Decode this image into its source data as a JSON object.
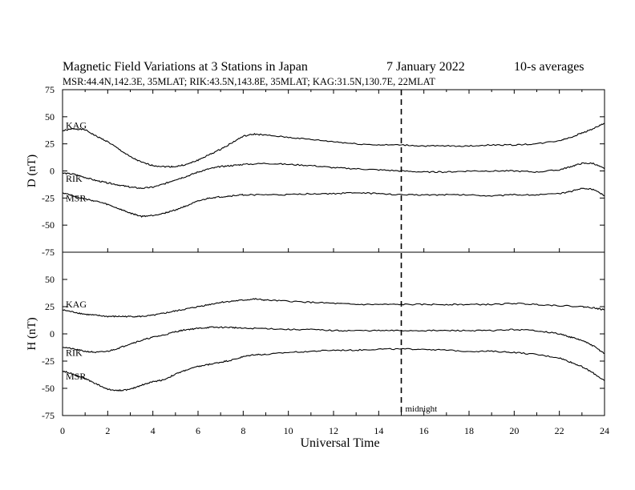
{
  "header": {
    "title": "Magnetic Field Variations at 3 Stations in Japan",
    "date": "7   January  2022",
    "averaging": "10-s averages",
    "stations_line": "MSR:44.4N,142.3E, 35MLAT;  RIK:43.5N,143.8E, 35MLAT;  KAG:31.5N,130.7E, 22MLAT"
  },
  "chart_data": {
    "type": "line",
    "xlabel": "Universal Time",
    "xlim": [
      0,
      24
    ],
    "x_ticks": [
      "0",
      "2",
      "4",
      "6",
      "8",
      "10",
      "12",
      "14",
      "16",
      "18",
      "20",
      "22",
      "24"
    ],
    "midnight_ut": 15,
    "midnight_label": "midnight",
    "panels": [
      {
        "ylabel": "D (nT)",
        "ylim": [
          -75,
          75
        ],
        "y_ticks": [
          "75",
          "50",
          "25",
          "0",
          "-25",
          "-50",
          "-75"
        ],
        "series": [
          {
            "name": "KAG",
            "x": [
              0,
              0.5,
              1,
              1.5,
              2,
              2.5,
              3,
              3.5,
              4,
              4.5,
              5,
              5.5,
              6,
              6.5,
              7,
              7.5,
              8,
              8.5,
              9,
              10,
              11,
              12,
              13,
              14,
              15,
              16,
              17,
              18,
              19,
              20,
              21,
              22,
              22.5,
              23,
              23.5,
              24
            ],
            "y": [
              37,
              39,
              38,
              32,
              27,
              20,
              13,
              8,
              5,
              4,
              4,
              6,
              10,
              15,
              20,
              26,
              32,
              34,
              33,
              31,
              29,
              27,
              25,
              24,
              24,
              23,
              23,
              23,
              24,
              24,
              25,
              28,
              31,
              35,
              39,
              44
            ]
          },
          {
            "name": "RIK",
            "x": [
              0,
              0.5,
              1,
              1.5,
              2,
              2.5,
              3,
              3.5,
              4,
              4.5,
              5,
              5.5,
              6,
              6.5,
              7,
              7.5,
              8,
              9,
              10,
              11,
              12,
              13,
              14,
              15,
              16,
              17,
              18,
              19,
              20,
              21,
              22,
              22.5,
              23,
              23.5,
              24
            ],
            "y": [
              -2,
              -3,
              -6,
              -9,
              -11,
              -13,
              -15,
              -16,
              -15,
              -12,
              -8,
              -5,
              -1,
              2,
              4,
              5,
              6,
              7,
              6,
              5,
              3,
              2,
              1,
              0,
              -1,
              -1,
              0,
              0,
              0,
              -1,
              1,
              4,
              7,
              7,
              2
            ]
          },
          {
            "name": "MSR",
            "x": [
              0,
              0.5,
              1,
              1.5,
              2,
              2.5,
              3,
              3.5,
              4,
              4.5,
              5,
              5.5,
              6,
              6.5,
              7,
              7.5,
              8,
              9,
              10,
              11,
              12,
              13,
              14,
              15,
              16,
              17,
              18,
              19,
              20,
              21,
              22,
              22.5,
              23,
              23.5,
              24
            ],
            "y": [
              -20,
              -23,
              -26,
              -28,
              -31,
              -35,
              -39,
              -42,
              -41,
              -39,
              -36,
              -32,
              -28,
              -25,
              -24,
              -23,
              -22,
              -22,
              -22,
              -21,
              -21,
              -20,
              -21,
              -22,
              -22,
              -22,
              -22,
              -23,
              -22,
              -22,
              -21,
              -19,
              -16,
              -17,
              -23
            ]
          }
        ]
      },
      {
        "ylabel": "H (nT)",
        "ylim": [
          -75,
          75
        ],
        "y_ticks": [
          "75",
          "50",
          "25",
          "0",
          "-25",
          "-50",
          "-75"
        ],
        "series": [
          {
            "name": "KAG",
            "x": [
              0,
              0.5,
              1,
              1.5,
              2,
              2.5,
              3,
              3.5,
              4,
              4.5,
              5,
              5.5,
              6,
              6.5,
              7,
              7.5,
              8,
              8.5,
              9,
              10,
              11,
              12,
              13,
              14,
              15,
              16,
              17,
              18,
              19,
              20,
              21,
              22,
              23,
              23.5,
              24
            ],
            "y": [
              22,
              20,
              18,
              17,
              16,
              16,
              16,
              16,
              17,
              19,
              21,
              23,
              25,
              27,
              29,
              30,
              31,
              32,
              31,
              30,
              29,
              28,
              27,
              27,
              27,
              27,
              27,
              27,
              27,
              28,
              27,
              26,
              25,
              24,
              22
            ]
          },
          {
            "name": "RIK",
            "x": [
              0,
              0.5,
              1,
              1.5,
              2,
              2.5,
              3,
              3.5,
              4,
              4.5,
              5,
              5.5,
              6,
              6.5,
              7,
              7.5,
              8,
              9,
              10,
              11,
              12,
              13,
              14,
              15,
              16,
              17,
              18,
              19,
              20,
              21,
              22,
              22.5,
              23,
              23.5,
              24
            ],
            "y": [
              -12,
              -14,
              -16,
              -17,
              -16,
              -13,
              -9,
              -6,
              -3,
              -1,
              2,
              4,
              5,
              6,
              6,
              6,
              5,
              5,
              4,
              4,
              3,
              3,
              3,
              3,
              3,
              3,
              3,
              3,
              4,
              3,
              0,
              -3,
              -6,
              -11,
              -18
            ]
          },
          {
            "name": "MSR",
            "x": [
              0,
              0.5,
              1,
              1.5,
              2,
              2.5,
              3,
              3.5,
              4,
              4.5,
              5,
              5.5,
              6,
              6.5,
              7,
              7.5,
              8,
              8.5,
              9,
              10,
              11,
              12,
              13,
              14,
              15,
              16,
              17,
              18,
              19,
              20,
              21,
              22,
              22.5,
              23,
              23.5,
              24
            ],
            "y": [
              -34,
              -37,
              -41,
              -46,
              -51,
              -52,
              -51,
              -47,
              -44,
              -42,
              -37,
              -33,
              -30,
              -28,
              -26,
              -24,
              -21,
              -19,
              -19,
              -17,
              -16,
              -15,
              -15,
              -14,
              -14,
              -14,
              -15,
              -16,
              -16,
              -17,
              -19,
              -22,
              -26,
              -30,
              -36,
              -43
            ]
          }
        ]
      }
    ]
  }
}
